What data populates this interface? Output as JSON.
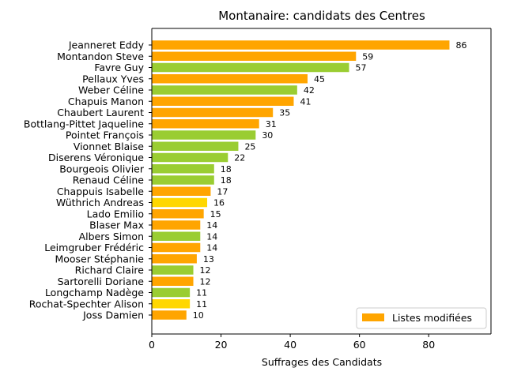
{
  "chart_data": {
    "type": "bar",
    "orientation": "horizontal",
    "title": "Montanaire: candidats des Centres",
    "xlabel": "Suffrages des Candidats",
    "ylabel": "",
    "xlim": [
      0,
      98
    ],
    "xticks": [
      0,
      20,
      40,
      60,
      80
    ],
    "grid": false,
    "legend": {
      "placement": "bottom-right",
      "entries": [
        {
          "label": "Listes modifiées",
          "color": "#FFA500"
        }
      ]
    },
    "bars": [
      {
        "name": "Jeanneret Eddy",
        "value": 86,
        "color": "#FFA500"
      },
      {
        "name": "Montandon Steve",
        "value": 59,
        "color": "#FFA500"
      },
      {
        "name": "Favre Guy",
        "value": 57,
        "color": "#9ACD32"
      },
      {
        "name": "Pellaux Yves",
        "value": 45,
        "color": "#FFA500"
      },
      {
        "name": "Weber Céline",
        "value": 42,
        "color": "#9ACD32"
      },
      {
        "name": "Chapuis Manon",
        "value": 41,
        "color": "#FFA500"
      },
      {
        "name": "Chaubert Laurent",
        "value": 35,
        "color": "#FFA500"
      },
      {
        "name": "Bottlang-Pittet Jaqueline",
        "value": 31,
        "color": "#FFA500"
      },
      {
        "name": "Pointet François",
        "value": 30,
        "color": "#9ACD32"
      },
      {
        "name": "Vionnet Blaise",
        "value": 25,
        "color": "#9ACD32"
      },
      {
        "name": "Diserens Véronique",
        "value": 22,
        "color": "#9ACD32"
      },
      {
        "name": "Bourgeois Olivier",
        "value": 18,
        "color": "#9ACD32"
      },
      {
        "name": "Renaud Céline",
        "value": 18,
        "color": "#9ACD32"
      },
      {
        "name": "Chappuis Isabelle",
        "value": 17,
        "color": "#FFA500"
      },
      {
        "name": "Wüthrich Andreas",
        "value": 16,
        "color": "#FFD700"
      },
      {
        "name": "Lado Emilio",
        "value": 15,
        "color": "#FFA500"
      },
      {
        "name": "Blaser Max",
        "value": 14,
        "color": "#FFA500"
      },
      {
        "name": "Albers Simon",
        "value": 14,
        "color": "#9ACD32"
      },
      {
        "name": "Leimgruber Frédéric",
        "value": 14,
        "color": "#FFA500"
      },
      {
        "name": "Mooser Stéphanie",
        "value": 13,
        "color": "#FFA500"
      },
      {
        "name": "Richard Claire",
        "value": 12,
        "color": "#9ACD32"
      },
      {
        "name": "Sartorelli Doriane",
        "value": 12,
        "color": "#FFA500"
      },
      {
        "name": "Longchamp Nadège",
        "value": 11,
        "color": "#9ACD32"
      },
      {
        "name": "Rochat-Spechter Alison",
        "value": 11,
        "color": "#FFD700"
      },
      {
        "name": "Joss Damien",
        "value": 10,
        "color": "#FFA500"
      }
    ]
  }
}
